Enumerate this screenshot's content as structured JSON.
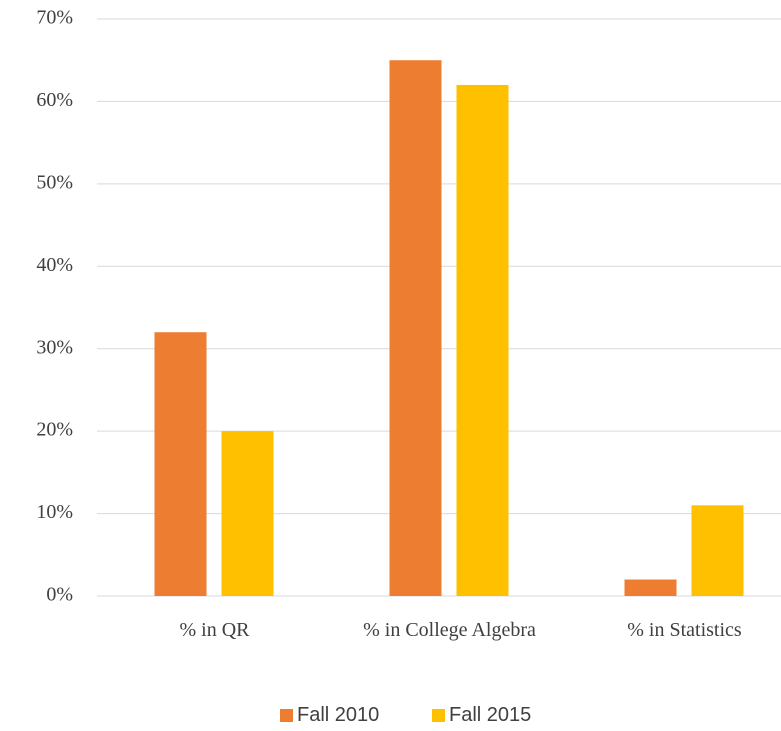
{
  "chart_data": {
    "type": "bar",
    "categories": [
      "% in QR",
      "% in College Algebra",
      "% in Statistics"
    ],
    "series": [
      {
        "name": "Fall 2010",
        "color": "#ed7d31",
        "values": [
          32,
          65,
          2
        ]
      },
      {
        "name": "Fall 2015",
        "color": "#ffc000",
        "values": [
          20,
          62,
          11
        ]
      }
    ],
    "ylim": [
      0,
      70
    ],
    "yticks": [
      {
        "value": 0,
        "label": "0%"
      },
      {
        "value": 10,
        "label": "10%"
      },
      {
        "value": 20,
        "label": "20%"
      },
      {
        "value": 30,
        "label": "30%"
      },
      {
        "value": 40,
        "label": "40%"
      },
      {
        "value": 50,
        "label": "50%"
      },
      {
        "value": 60,
        "label": "60%"
      },
      {
        "value": 70,
        "label": "70%"
      }
    ],
    "grid": true,
    "legend": "bottom"
  }
}
